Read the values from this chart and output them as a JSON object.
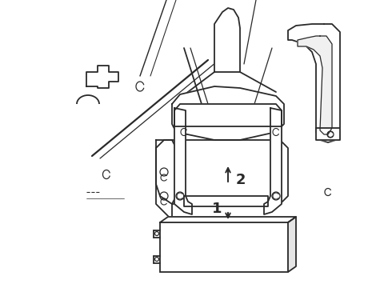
{
  "bg_color": "#ffffff",
  "line_color": "#2a2a2a",
  "line_width": 1.3,
  "label1": "1",
  "label2": "2",
  "figsize": [
    4.9,
    3.6
  ],
  "dpi": 100
}
